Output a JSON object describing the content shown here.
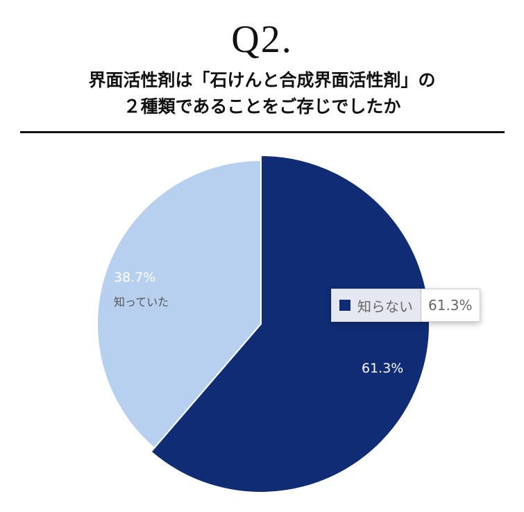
{
  "header": {
    "question_no": "Q2.",
    "question_line1": "界面活性剤は「石けんと合成界面活性剤」の",
    "question_line2": "２種類であることをご存じでしたか"
  },
  "colors": {
    "dark": "#102c74",
    "light": "#b8d0f0"
  },
  "labels": {
    "light_pct": "38.7%",
    "light_name": "知っていた",
    "dark_pct": "61.3%"
  },
  "tooltip": {
    "name": "知らない",
    "value": "61.3%"
  },
  "chart_data": {
    "type": "pie",
    "title": "Q2. 界面活性剤は「石けんと合成界面活性剤」の２種類であることをご存じでしたか",
    "categories": [
      "知らない",
      "知っていた"
    ],
    "values": [
      61.3,
      38.7
    ],
    "unit": "%",
    "colors": [
      "#102c74",
      "#b8d0f0"
    ],
    "start_angle": "12 o'clock, clockwise",
    "highlighted": "知らない",
    "legend": "none (inline labels + hover tooltip)"
  }
}
